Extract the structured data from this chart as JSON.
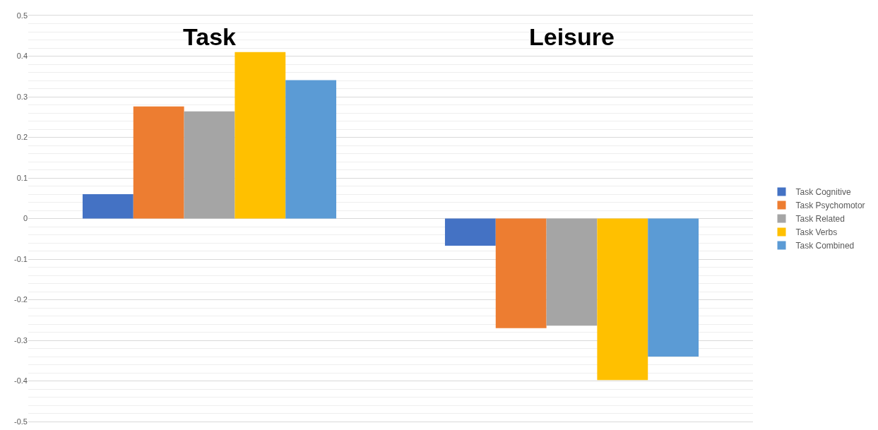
{
  "chart_data": {
    "type": "bar",
    "categories": [
      "Task",
      "Leisure"
    ],
    "series": [
      {
        "name": "Task Cognitive",
        "color": "#4472c4",
        "values": [
          0.06,
          -0.067
        ]
      },
      {
        "name": "Task Psychomotor",
        "color": "#ed7d31",
        "values": [
          0.276,
          -0.27
        ]
      },
      {
        "name": "Task Related",
        "color": "#a5a5a5",
        "values": [
          0.264,
          -0.264
        ]
      },
      {
        "name": "Task Verbs",
        "color": "#ffc000",
        "values": [
          0.41,
          -0.398
        ]
      },
      {
        "name": "Task Combined",
        "color": "#5b9bd5",
        "values": [
          0.341,
          -0.34
        ]
      }
    ],
    "ylim": [
      -0.5,
      0.5
    ],
    "yticks": [
      -0.5,
      -0.4,
      -0.3,
      -0.2,
      -0.1,
      0,
      0.1,
      0.2,
      0.3,
      0.4,
      0.5
    ],
    "grid": "y",
    "legend": "right"
  }
}
